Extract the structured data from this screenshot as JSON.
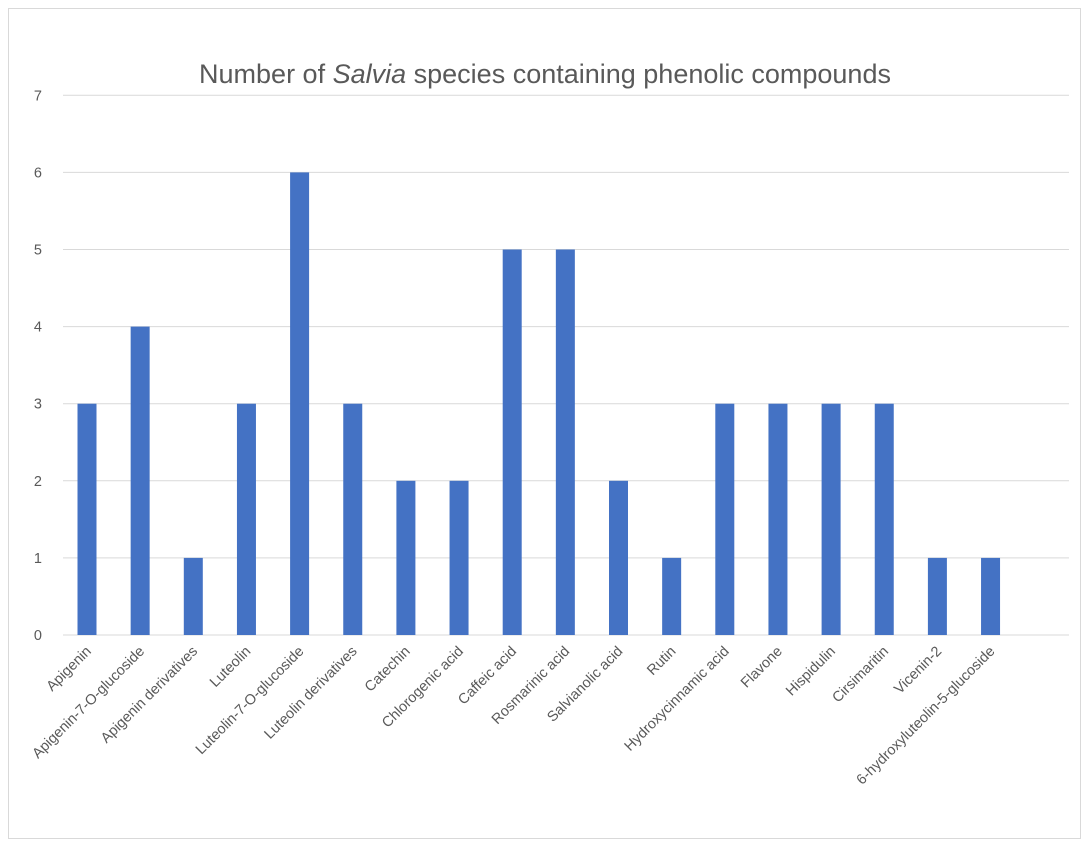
{
  "chart_data": {
    "type": "bar",
    "title_parts": [
      {
        "text": "Number of ",
        "italic": false
      },
      {
        "text": "Salvia",
        "italic": true
      },
      {
        "text": " species containing phenolic compounds",
        "italic": false
      }
    ],
    "categories": [
      "Apigenin",
      "Apigenin-7-O-glucoside",
      "Apigenin derivatives",
      "Luteolin",
      "Luteolin-7-O-glucoside",
      "Luteolin derivatives",
      "Catechin",
      "Chlorogenic acid",
      "Caffeic acid",
      "Rosmarinic acid",
      "Salvianolic acid",
      "Rutin",
      "Hydroxycinnamic acid",
      "Flavone",
      "Hispidulin",
      "Cirsimaritin",
      "Vicenin-2",
      "6-hydroxyluteolin-5-glucoside"
    ],
    "values": [
      3,
      4,
      1,
      3,
      6,
      3,
      2,
      2,
      5,
      5,
      2,
      1,
      3,
      3,
      3,
      3,
      1,
      1
    ],
    "ylim": [
      0,
      7
    ],
    "yticks": [
      0,
      1,
      2,
      3,
      4,
      5,
      6,
      7
    ],
    "grid": true,
    "legend": "none",
    "colors": {
      "bar": "#4472c4",
      "grid": "#d9d9d9",
      "text": "#595959"
    }
  }
}
